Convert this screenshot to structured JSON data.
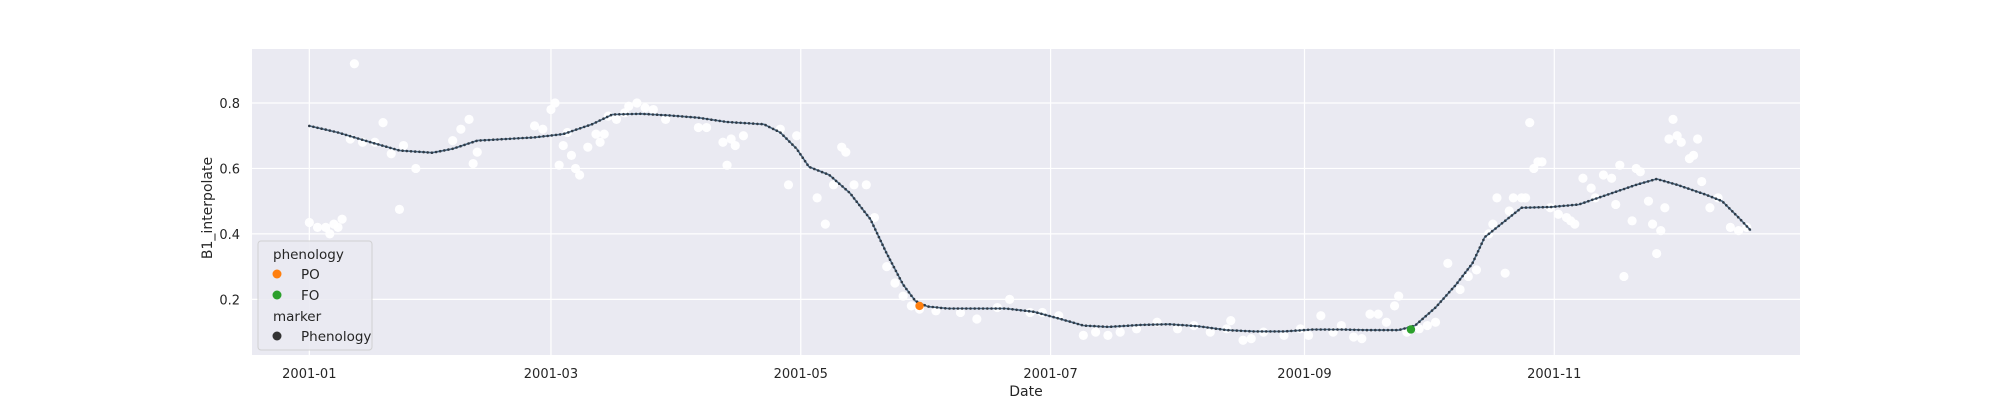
{
  "chart_data": {
    "type": "scatter",
    "title": "",
    "xlabel": "Date",
    "ylabel": "B1_interpolate",
    "x_range": [
      "2000-12-18",
      "2001-12-31"
    ],
    "ylim": [
      0.03,
      0.965
    ],
    "x_ticks": [
      "2001-01-01",
      "2001-03-01",
      "2001-05-01",
      "2001-07-01",
      "2001-09-01",
      "2001-11-01"
    ],
    "x_tick_labels": [
      "2001-01",
      "2001-03",
      "2001-05",
      "2001-07",
      "2001-09",
      "2001-11"
    ],
    "y_ticks": [
      0.2,
      0.4,
      0.6,
      0.8
    ],
    "y_tick_labels": [
      "0.2",
      "0.4",
      "0.6",
      "0.8"
    ],
    "grid": true,
    "background": "#eaeaf2",
    "legend": {
      "placement": "lower-left",
      "hue_title": "phenology",
      "hue_items": [
        {
          "label": "PO",
          "color": "#ff7f0e"
        },
        {
          "label": "FO",
          "color": "#2ca02c"
        }
      ],
      "marker_title": "marker",
      "marker_items": [
        {
          "label": "Phenology",
          "color": "#333333"
        }
      ]
    },
    "series": [
      {
        "kind": "raw_points",
        "color": "#ffffff",
        "points": [
          [
            "2001-01-01",
            0.435
          ],
          [
            "2001-01-03",
            0.42
          ],
          [
            "2001-01-05",
            0.42
          ],
          [
            "2001-01-06",
            0.4
          ],
          [
            "2001-01-07",
            0.43
          ],
          [
            "2001-01-08",
            0.42
          ],
          [
            "2001-01-09",
            0.445
          ],
          [
            "2001-01-11",
            0.69
          ],
          [
            "2001-01-12",
            0.92
          ],
          [
            "2001-01-14",
            0.68
          ],
          [
            "2001-01-17",
            0.68
          ],
          [
            "2001-01-19",
            0.74
          ],
          [
            "2001-01-21",
            0.645
          ],
          [
            "2001-01-23",
            0.475
          ],
          [
            "2001-01-24",
            0.67
          ],
          [
            "2001-01-27",
            0.6
          ],
          [
            "2001-02-05",
            0.685
          ],
          [
            "2001-02-07",
            0.72
          ],
          [
            "2001-02-09",
            0.75
          ],
          [
            "2001-02-10",
            0.615
          ],
          [
            "2001-02-11",
            0.65
          ],
          [
            "2001-02-25",
            0.73
          ],
          [
            "2001-02-27",
            0.72
          ],
          [
            "2001-03-01",
            0.78
          ],
          [
            "2001-03-02",
            0.8
          ],
          [
            "2001-03-03",
            0.61
          ],
          [
            "2001-03-04",
            0.67
          ],
          [
            "2001-03-05",
            0.71
          ],
          [
            "2001-03-06",
            0.64
          ],
          [
            "2001-03-07",
            0.6
          ],
          [
            "2001-03-08",
            0.58
          ],
          [
            "2001-03-10",
            0.665
          ],
          [
            "2001-03-12",
            0.705
          ],
          [
            "2001-03-13",
            0.68
          ],
          [
            "2001-03-14",
            0.705
          ],
          [
            "2001-03-15",
            0.76
          ],
          [
            "2001-03-17",
            0.75
          ],
          [
            "2001-03-19",
            0.77
          ],
          [
            "2001-03-20",
            0.79
          ],
          [
            "2001-03-22",
            0.8
          ],
          [
            "2001-03-24",
            0.785
          ],
          [
            "2001-03-26",
            0.78
          ],
          [
            "2001-03-29",
            0.75
          ],
          [
            "2001-04-06",
            0.725
          ],
          [
            "2001-04-08",
            0.725
          ],
          [
            "2001-04-12",
            0.68
          ],
          [
            "2001-04-13",
            0.61
          ],
          [
            "2001-04-14",
            0.69
          ],
          [
            "2001-04-15",
            0.67
          ],
          [
            "2001-04-17",
            0.7
          ],
          [
            "2001-04-26",
            0.72
          ],
          [
            "2001-04-28",
            0.55
          ],
          [
            "2001-04-30",
            0.7
          ],
          [
            "2001-05-05",
            0.51
          ],
          [
            "2001-05-07",
            0.43
          ],
          [
            "2001-05-09",
            0.55
          ],
          [
            "2001-05-11",
            0.665
          ],
          [
            "2001-05-12",
            0.65
          ],
          [
            "2001-05-14",
            0.55
          ],
          [
            "2001-05-17",
            0.55
          ],
          [
            "2001-05-19",
            0.45
          ],
          [
            "2001-05-22",
            0.3
          ],
          [
            "2001-05-24",
            0.25
          ],
          [
            "2001-05-26",
            0.21
          ],
          [
            "2001-05-28",
            0.18
          ],
          [
            "2001-05-30",
            0.17
          ],
          [
            "2001-06-03",
            0.165
          ],
          [
            "2001-06-09",
            0.16
          ],
          [
            "2001-06-13",
            0.14
          ],
          [
            "2001-06-18",
            0.175
          ],
          [
            "2001-06-21",
            0.2
          ],
          [
            "2001-06-26",
            0.16
          ],
          [
            "2001-06-29",
            0.16
          ],
          [
            "2001-07-03",
            0.15
          ],
          [
            "2001-07-09",
            0.09
          ],
          [
            "2001-07-12",
            0.1
          ],
          [
            "2001-07-15",
            0.09
          ],
          [
            "2001-07-18",
            0.1
          ],
          [
            "2001-07-22",
            0.11
          ],
          [
            "2001-07-27",
            0.13
          ],
          [
            "2001-08-01",
            0.11
          ],
          [
            "2001-08-05",
            0.12
          ],
          [
            "2001-08-09",
            0.1
          ],
          [
            "2001-08-13",
            0.11
          ],
          [
            "2001-08-14",
            0.135
          ],
          [
            "2001-08-17",
            0.075
          ],
          [
            "2001-08-19",
            0.08
          ],
          [
            "2001-08-22",
            0.1
          ],
          [
            "2001-08-27",
            0.09
          ],
          [
            "2001-08-31",
            0.11
          ],
          [
            "2001-09-02",
            0.09
          ],
          [
            "2001-09-05",
            0.15
          ],
          [
            "2001-09-08",
            0.1
          ],
          [
            "2001-09-10",
            0.12
          ],
          [
            "2001-09-13",
            0.085
          ],
          [
            "2001-09-15",
            0.08
          ],
          [
            "2001-09-17",
            0.155
          ],
          [
            "2001-09-19",
            0.155
          ],
          [
            "2001-09-21",
            0.13
          ],
          [
            "2001-09-23",
            0.18
          ],
          [
            "2001-09-24",
            0.21
          ],
          [
            "2001-09-26",
            0.1
          ],
          [
            "2001-09-29",
            0.11
          ],
          [
            "2001-10-01",
            0.12
          ],
          [
            "2001-10-03",
            0.13
          ],
          [
            "2001-10-06",
            0.31
          ],
          [
            "2001-10-09",
            0.23
          ],
          [
            "2001-10-11",
            0.27
          ],
          [
            "2001-10-13",
            0.29
          ],
          [
            "2001-10-16",
            0.4
          ],
          [
            "2001-10-17",
            0.43
          ],
          [
            "2001-10-18",
            0.51
          ],
          [
            "2001-10-20",
            0.28
          ],
          [
            "2001-10-21",
            0.47
          ],
          [
            "2001-10-22",
            0.51
          ],
          [
            "2001-10-24",
            0.51
          ],
          [
            "2001-10-25",
            0.51
          ],
          [
            "2001-10-26",
            0.74
          ],
          [
            "2001-10-27",
            0.6
          ],
          [
            "2001-10-28",
            0.62
          ],
          [
            "2001-10-29",
            0.62
          ],
          [
            "2001-10-31",
            0.48
          ],
          [
            "2001-11-02",
            0.46
          ],
          [
            "2001-11-04",
            0.45
          ],
          [
            "2001-11-05",
            0.44
          ],
          [
            "2001-11-06",
            0.43
          ],
          [
            "2001-11-08",
            0.57
          ],
          [
            "2001-11-10",
            0.54
          ],
          [
            "2001-11-11",
            0.51
          ],
          [
            "2001-11-13",
            0.58
          ],
          [
            "2001-11-15",
            0.57
          ],
          [
            "2001-11-16",
            0.49
          ],
          [
            "2001-11-17",
            0.61
          ],
          [
            "2001-11-18",
            0.27
          ],
          [
            "2001-11-20",
            0.44
          ],
          [
            "2001-11-21",
            0.6
          ],
          [
            "2001-11-22",
            0.59
          ],
          [
            "2001-11-24",
            0.5
          ],
          [
            "2001-11-25",
            0.43
          ],
          [
            "2001-11-26",
            0.34
          ],
          [
            "2001-11-27",
            0.41
          ],
          [
            "2001-11-28",
            0.48
          ],
          [
            "2001-11-29",
            0.69
          ],
          [
            "2001-11-30",
            0.75
          ],
          [
            "2001-12-01",
            0.7
          ],
          [
            "2001-12-02",
            0.68
          ],
          [
            "2001-12-04",
            0.63
          ],
          [
            "2001-12-05",
            0.64
          ],
          [
            "2001-12-06",
            0.69
          ],
          [
            "2001-12-07",
            0.56
          ],
          [
            "2001-12-09",
            0.48
          ],
          [
            "2001-12-11",
            0.51
          ],
          [
            "2001-12-14",
            0.42
          ],
          [
            "2001-12-16",
            0.41
          ],
          [
            "2001-12-18",
            0.42
          ]
        ]
      },
      {
        "kind": "smoothed_line",
        "color": "#4c6b85",
        "points": [
          [
            "2001-01-01",
            0.73
          ],
          [
            "2001-01-08",
            0.71
          ],
          [
            "2001-01-16",
            0.68
          ],
          [
            "2001-01-23",
            0.655
          ],
          [
            "2001-01-31",
            0.648
          ],
          [
            "2001-02-05",
            0.66
          ],
          [
            "2001-02-11",
            0.685
          ],
          [
            "2001-02-18",
            0.69
          ],
          [
            "2001-02-25",
            0.695
          ],
          [
            "2001-03-04",
            0.705
          ],
          [
            "2001-03-11",
            0.735
          ],
          [
            "2001-03-16",
            0.765
          ],
          [
            "2001-03-23",
            0.767
          ],
          [
            "2001-03-30",
            0.762
          ],
          [
            "2001-04-06",
            0.755
          ],
          [
            "2001-04-13",
            0.742
          ],
          [
            "2001-04-22",
            0.735
          ],
          [
            "2001-04-26",
            0.71
          ],
          [
            "2001-04-30",
            0.66
          ],
          [
            "2001-05-03",
            0.605
          ],
          [
            "2001-05-08",
            0.58
          ],
          [
            "2001-05-13",
            0.525
          ],
          [
            "2001-05-18",
            0.445
          ],
          [
            "2001-05-22",
            0.34
          ],
          [
            "2001-05-26",
            0.245
          ],
          [
            "2001-05-29",
            0.195
          ],
          [
            "2001-06-01",
            0.178
          ],
          [
            "2001-06-06",
            0.172
          ],
          [
            "2001-06-13",
            0.172
          ],
          [
            "2001-06-20",
            0.172
          ],
          [
            "2001-06-27",
            0.162
          ],
          [
            "2001-07-04",
            0.138
          ],
          [
            "2001-07-09",
            0.12
          ],
          [
            "2001-07-15",
            0.116
          ],
          [
            "2001-07-23",
            0.122
          ],
          [
            "2001-07-30",
            0.124
          ],
          [
            "2001-08-06",
            0.118
          ],
          [
            "2001-08-13",
            0.106
          ],
          [
            "2001-08-20",
            0.102
          ],
          [
            "2001-08-27",
            0.102
          ],
          [
            "2001-09-03",
            0.108
          ],
          [
            "2001-09-10",
            0.108
          ],
          [
            "2001-09-17",
            0.106
          ],
          [
            "2001-09-24",
            0.106
          ],
          [
            "2001-09-28",
            0.12
          ],
          [
            "2001-10-03",
            0.175
          ],
          [
            "2001-10-08",
            0.245
          ],
          [
            "2001-10-12",
            0.31
          ],
          [
            "2001-10-15",
            0.39
          ],
          [
            "2001-10-19",
            0.43
          ],
          [
            "2001-10-24",
            0.48
          ],
          [
            "2001-10-31",
            0.482
          ],
          [
            "2001-11-07",
            0.49
          ],
          [
            "2001-11-14",
            0.52
          ],
          [
            "2001-11-21",
            0.55
          ],
          [
            "2001-11-26",
            0.568
          ],
          [
            "2001-12-01",
            0.55
          ],
          [
            "2001-12-08",
            0.52
          ],
          [
            "2001-12-12",
            0.5
          ],
          [
            "2001-12-16",
            0.45
          ],
          [
            "2001-12-19",
            0.41
          ]
        ]
      },
      {
        "kind": "phenology_point",
        "label": "PO",
        "color": "#ff7f0e",
        "points": [
          [
            "2001-05-30",
            0.18
          ]
        ]
      },
      {
        "kind": "phenology_point",
        "label": "FO",
        "color": "#2ca02c",
        "points": [
          [
            "2001-09-27",
            0.108
          ]
        ]
      }
    ]
  }
}
